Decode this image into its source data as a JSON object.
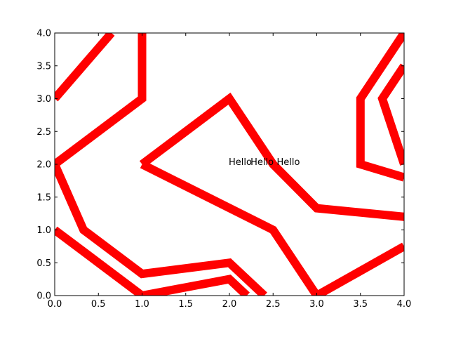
{
  "chart_data": {
    "type": "line",
    "title": "",
    "xlabel": "",
    "ylabel": "",
    "xlim": [
      0.0,
      4.0
    ],
    "ylim": [
      0.0,
      4.0
    ],
    "grid": false,
    "legend": "none",
    "line_color": "#ff0000",
    "x_ticks": [
      0.0,
      0.5,
      1.0,
      1.5,
      2.0,
      2.5,
      3.0,
      3.5,
      4.0
    ],
    "y_ticks": [
      0.0,
      0.5,
      1.0,
      1.5,
      2.0,
      2.5,
      3.0,
      3.5,
      4.0
    ],
    "x_tick_labels": [
      "0.0",
      "0.5",
      "1.0",
      "1.5",
      "2.0",
      "2.5",
      "3.0",
      "3.5",
      "4.0"
    ],
    "y_tick_labels": [
      "0.0",
      "0.5",
      "1.0",
      "1.5",
      "2.0",
      "2.5",
      "3.0",
      "3.5",
      "4.0"
    ],
    "series": [
      {
        "points": [
          [
            0.0,
            3.0
          ],
          [
            0.65,
            4.0
          ]
        ]
      },
      {
        "points": [
          [
            1.0,
            4.0
          ],
          [
            1.0,
            3.0
          ],
          [
            0.0,
            2.0
          ],
          [
            0.33,
            1.0
          ],
          [
            1.0,
            0.33
          ],
          [
            2.0,
            0.5
          ],
          [
            2.4,
            0.0
          ]
        ]
      },
      {
        "points": [
          [
            0.0,
            2.0
          ],
          [
            0.0,
            1.9
          ]
        ]
      },
      {
        "points": [
          [
            0.0,
            1.0
          ],
          [
            1.0,
            0.0
          ],
          [
            2.0,
            0.25
          ],
          [
            2.2,
            0.0
          ]
        ]
      },
      {
        "points": [
          [
            1.0,
            2.0
          ],
          [
            2.0,
            3.0
          ],
          [
            2.5,
            2.0
          ],
          [
            3.0,
            1.33
          ],
          [
            4.0,
            1.2
          ]
        ]
      },
      {
        "points": [
          [
            1.0,
            2.0
          ],
          [
            2.5,
            1.0
          ],
          [
            3.0,
            0.0
          ],
          [
            4.0,
            0.75
          ]
        ]
      },
      {
        "points": [
          [
            4.0,
            4.0
          ],
          [
            3.5,
            3.0
          ],
          [
            3.5,
            2.0
          ],
          [
            4.0,
            1.8
          ]
        ]
      },
      {
        "points": [
          [
            4.0,
            3.5
          ],
          [
            3.75,
            3.0
          ],
          [
            4.0,
            2.0
          ]
        ]
      }
    ],
    "annotations": [
      {
        "text": "Hello",
        "x": 2.0,
        "y": 2.0
      },
      {
        "text": "Hello",
        "x": 2.25,
        "y": 2.0
      },
      {
        "text": "Hello",
        "x": 2.55,
        "y": 2.0
      }
    ]
  }
}
